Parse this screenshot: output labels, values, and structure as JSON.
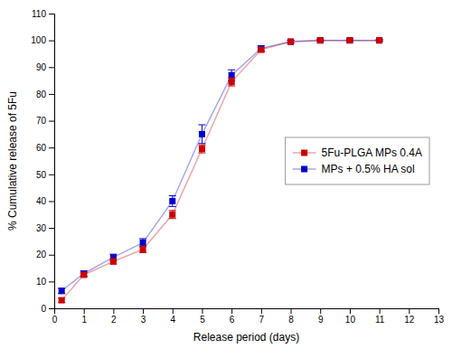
{
  "chart_data": {
    "type": "line",
    "xlabel": "Release period (days)",
    "ylabel": "% Cumulative release of 5Fu",
    "x": [
      0.25,
      1,
      2,
      3,
      4,
      5,
      6,
      7,
      8,
      9,
      10,
      11
    ],
    "series": [
      {
        "name": "5Fu-PLGA MPs 0.4A",
        "color": "#cc0000",
        "marker": "square",
        "values": [
          3.0,
          12.5,
          17.5,
          22.0,
          35.0,
          59.5,
          84.5,
          96.5,
          99.5,
          100.0,
          100.0,
          100.0
        ],
        "errors": [
          0.8,
          0.8,
          1.0,
          1.2,
          1.5,
          1.5,
          1.5,
          0.8,
          0.5,
          0.3,
          0.3,
          0.3
        ]
      },
      {
        "name": "MPs + 0.5% HA sol",
        "color": "#0000cc",
        "marker": "square",
        "values": [
          6.5,
          13.0,
          19.0,
          24.5,
          40.0,
          65.0,
          87.0,
          97.0,
          99.5,
          100.0,
          100.0,
          100.0
        ],
        "errors": [
          1.0,
          1.0,
          1.2,
          1.5,
          2.0,
          3.5,
          2.0,
          1.0,
          0.5,
          0.3,
          0.3,
          0.3
        ]
      }
    ],
    "xlim": [
      0,
      13
    ],
    "ylim": [
      0,
      110
    ],
    "xticks": [
      0,
      1,
      2,
      3,
      4,
      5,
      6,
      7,
      8,
      9,
      10,
      11,
      12,
      13
    ],
    "yticks": [
      0,
      10,
      20,
      30,
      40,
      50,
      60,
      70,
      80,
      90,
      100,
      110
    ],
    "grid": false,
    "legend": "right"
  }
}
